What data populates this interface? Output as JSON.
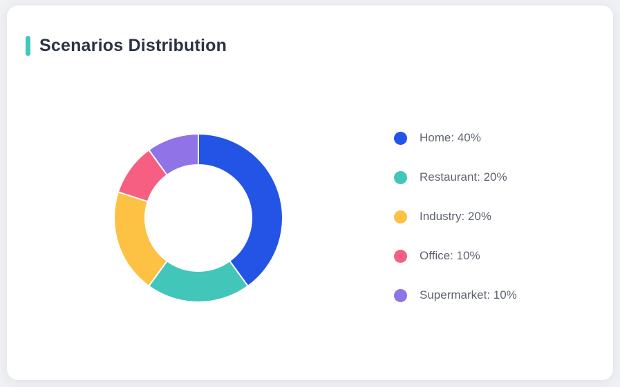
{
  "page": {
    "background_color": "#eff1f4"
  },
  "card": {
    "title": "Scenarios Distribution",
    "accent_color": "#41c8bc",
    "background_color": "#ffffff"
  },
  "chart_data": {
    "type": "pie",
    "variant": "donut",
    "title": "Scenarios Distribution",
    "categories": [
      "Home",
      "Restaurant",
      "Industry",
      "Office",
      "Supermarket"
    ],
    "values": [
      40,
      20,
      20,
      10,
      10
    ],
    "unit": "%",
    "colors": [
      "#2354e6",
      "#41c6b9",
      "#fdc243",
      "#f75f82",
      "#9173e8"
    ],
    "segment_border_color": "#ffffff",
    "segment_border_width": 2,
    "start_angle_deg": 0,
    "direction": "clockwise",
    "inner_radius_ratio": 0.63,
    "legend_position": "right",
    "legend_labels": [
      "Home: 40%",
      "Restaurant: 20%",
      "Industry: 20%",
      "Office: 10%",
      "Supermarket: 10%"
    ]
  }
}
